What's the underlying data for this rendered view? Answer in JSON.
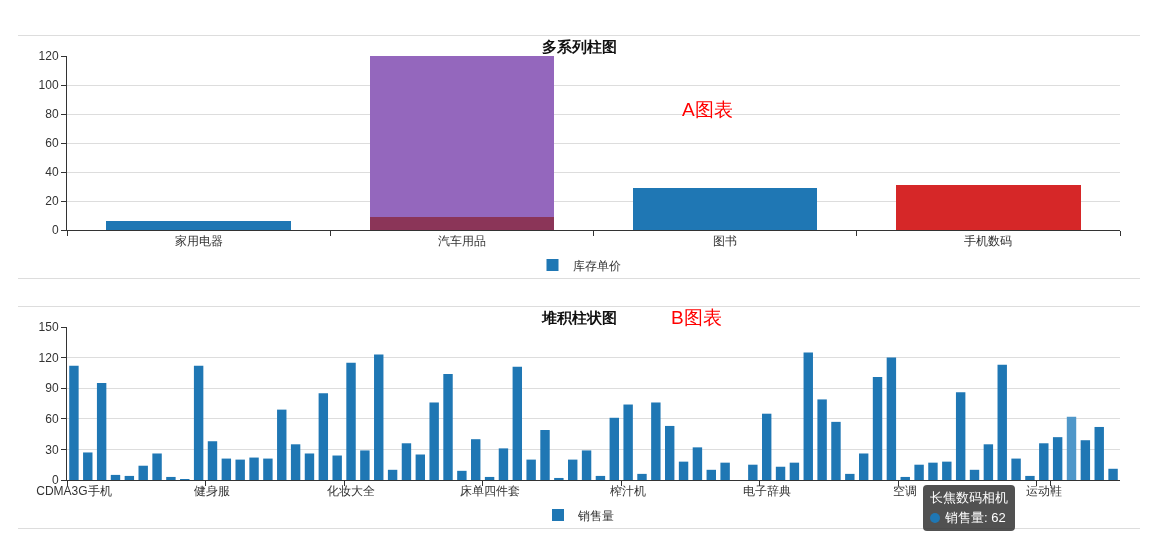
{
  "chart_data": [
    {
      "type": "bar",
      "title": "多系列柱图",
      "categories": [
        "家用电器",
        "汽车用品",
        "图书",
        "手机数码"
      ],
      "stacked": true,
      "series": [
        {
          "color": "#8b3558",
          "values": [
            null,
            9,
            null,
            null
          ]
        },
        {
          "name": "库存单价",
          "color": "#1f77b4",
          "values": [
            6,
            null,
            29,
            null
          ]
        },
        {
          "color": "#9467bd",
          "values": [
            null,
            111,
            null,
            null
          ]
        },
        {
          "color": "#d62728",
          "values": [
            null,
            null,
            null,
            31
          ]
        }
      ],
      "ylim": [
        0,
        120
      ],
      "yticks": [
        0,
        20,
        40,
        60,
        80,
        100,
        120
      ],
      "grid": "y",
      "legend": "bottom",
      "annotations": [
        "A图表"
      ]
    },
    {
      "type": "bar",
      "title": "堆积柱状图",
      "categories": [
        "CDMA3G手机",
        null,
        null,
        null,
        null,
        null,
        null,
        null,
        null,
        null,
        "健身服",
        null,
        null,
        null,
        null,
        null,
        null,
        null,
        null,
        null,
        "化妆大全",
        null,
        null,
        null,
        null,
        null,
        null,
        null,
        null,
        null,
        "床单四件套",
        null,
        null,
        null,
        null,
        null,
        null,
        null,
        null,
        null,
        "榨汁机",
        null,
        null,
        null,
        null,
        null,
        null,
        null,
        null,
        null,
        "电子辞典",
        null,
        null,
        null,
        null,
        null,
        null,
        null,
        null,
        null,
        "空调",
        null,
        null,
        null,
        null,
        null,
        null,
        null,
        null,
        null,
        "运动鞋",
        null,
        null,
        null,
        null,
        null
      ],
      "series": [
        {
          "name": "销售量",
          "color": "#1f77b4",
          "values": [
            112,
            27,
            95,
            5,
            4,
            14,
            26,
            3,
            1,
            112,
            38,
            21,
            20,
            22,
            21,
            69,
            35,
            26,
            85,
            24,
            115,
            29,
            123,
            10,
            36,
            25,
            76,
            104,
            9,
            40,
            3,
            31,
            111,
            20,
            49,
            2,
            20,
            29,
            4,
            61,
            74,
            6,
            76,
            53,
            18,
            32,
            10,
            17,
            0,
            15,
            65,
            13,
            17,
            125,
            79,
            57,
            6,
            26,
            101,
            120,
            3,
            15,
            17,
            18,
            86,
            10,
            35,
            113,
            21,
            4,
            36,
            42,
            62,
            39,
            52,
            11
          ],
          "colors": [
            null,
            null,
            null,
            null,
            null,
            null,
            null,
            null,
            null,
            null,
            null,
            null,
            null,
            null,
            null,
            null,
            null,
            null,
            null,
            null,
            null,
            null,
            null,
            null,
            null,
            null,
            null,
            null,
            null,
            null,
            null,
            null,
            null,
            null,
            null,
            null,
            null,
            null,
            null,
            null,
            null,
            null,
            null,
            null,
            null,
            null,
            null,
            null,
            null,
            null,
            null,
            null,
            null,
            null,
            null,
            null,
            null,
            null,
            null,
            null,
            null,
            null,
            null,
            null,
            null,
            null,
            null,
            null,
            null,
            null,
            null,
            null,
            "#4f97c9",
            null,
            null,
            null
          ]
        }
      ],
      "ylim": [
        0,
        150
      ],
      "yticks": [
        0,
        30,
        60,
        90,
        120,
        150
      ],
      "grid": "y",
      "legend": "bottom",
      "annotations": [
        "B图表",
        "长焦数码相机",
        "销售量: 62"
      ]
    }
  ]
}
